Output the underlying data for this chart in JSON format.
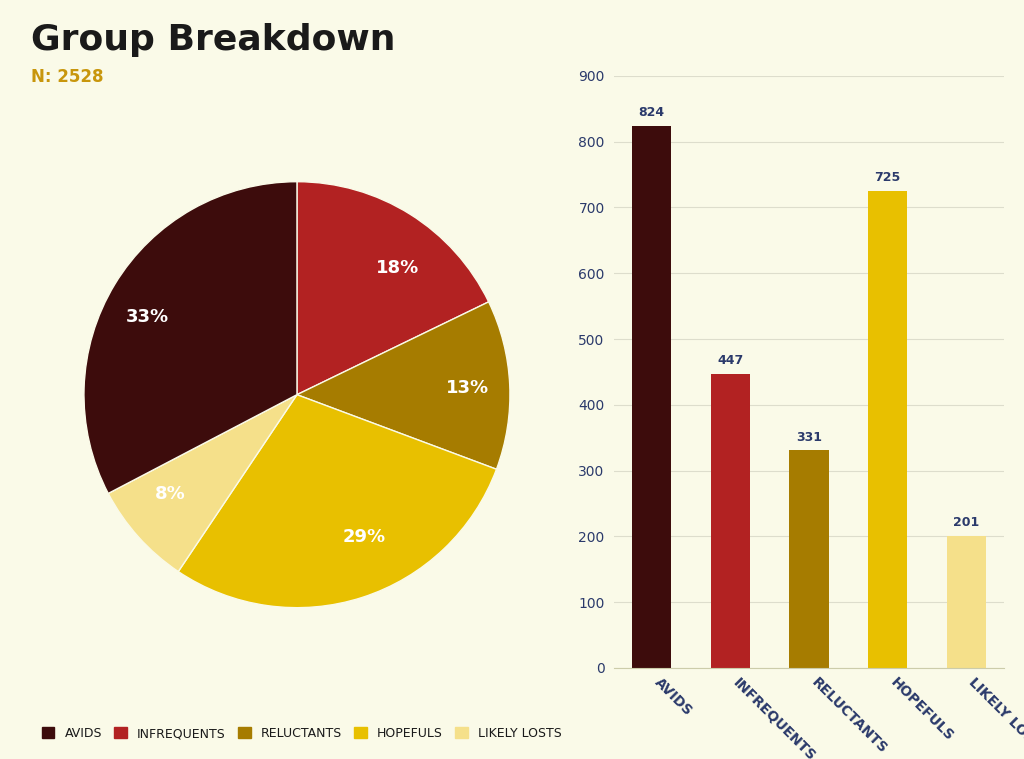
{
  "title": "Group Breakdown",
  "subtitle": "N: 2528",
  "subtitle_color": "#C8960C",
  "background_color": "#FAFAE8",
  "categories": [
    "AVIDS",
    "INFREQUENTS",
    "RELUCTANTS",
    "HOPEFULS",
    "LIKELY LOSTS"
  ],
  "values": [
    824,
    447,
    331,
    725,
    201
  ],
  "percentages": [
    33,
    18,
    13,
    29,
    8
  ],
  "bar_colors": [
    "#3D0C0C",
    "#B22222",
    "#A67C00",
    "#E8C000",
    "#F5E08A"
  ],
  "pie_colors": [
    "#3D0C0C",
    "#B22222",
    "#A67C00",
    "#E8C000",
    "#F5E08A"
  ],
  "pie_startangle": 90,
  "bar_label_color": "#2B3A6B",
  "tick_label_color": "#2B3A6B",
  "ytick_values": [
    0,
    100,
    200,
    300,
    400,
    500,
    600,
    700,
    800,
    900
  ],
  "ylim": [
    0,
    900
  ],
  "title_fontsize": 26,
  "subtitle_fontsize": 12,
  "legend_fontsize": 9,
  "bar_label_fontsize": 9,
  "tick_fontsize": 10,
  "grid_color": "#DDDDCC",
  "bar_label_weight": "bold",
  "pie_label_fontsize": 13,
  "pie_label_color": "white"
}
